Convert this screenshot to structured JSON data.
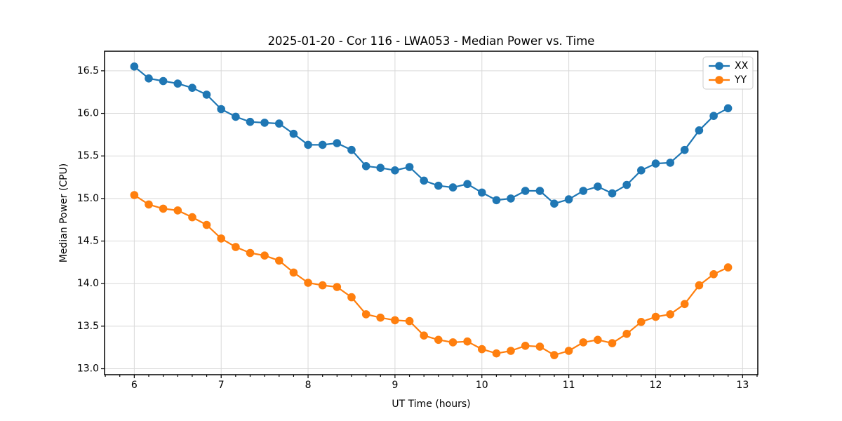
{
  "figure": {
    "title": "2025-01-20 - Cor 116 - LWA053 - Median Power vs. Time"
  },
  "chart_data": {
    "type": "line",
    "title": "2025-01-20 - Cor 116 - LWA053 - Median Power vs. Time",
    "xlabel": "UT Time (hours)",
    "ylabel": "Median Power (CPU)",
    "xlim": [
      5.658,
      13.175
    ],
    "ylim": [
      12.93,
      16.73
    ],
    "xticks": [
      6,
      7,
      8,
      9,
      10,
      11,
      12,
      13
    ],
    "x_minor_step": 0.16667,
    "yticks": [
      13.0,
      13.5,
      14.0,
      14.5,
      15.0,
      15.5,
      16.0,
      16.5
    ],
    "ytick_decimals": 1,
    "grid": true,
    "legend": {
      "location": "upper right",
      "entries": [
        "XX",
        "YY"
      ]
    },
    "marker": "circle",
    "x": [
      6.0,
      6.167,
      6.333,
      6.5,
      6.667,
      6.833,
      7.0,
      7.167,
      7.333,
      7.5,
      7.667,
      7.833,
      8.0,
      8.167,
      8.333,
      8.5,
      8.667,
      8.833,
      9.0,
      9.167,
      9.333,
      9.5,
      9.667,
      9.833,
      10.0,
      10.167,
      10.333,
      10.5,
      10.667,
      10.833,
      11.0,
      11.167,
      11.333,
      11.5,
      11.667,
      11.833,
      12.0,
      12.167,
      12.333,
      12.5,
      12.667,
      12.833
    ],
    "series": [
      {
        "name": "XX",
        "color": "#1f77b4",
        "values": [
          16.55,
          16.41,
          16.38,
          16.35,
          16.3,
          16.22,
          16.05,
          15.96,
          15.9,
          15.89,
          15.88,
          15.76,
          15.63,
          15.63,
          15.65,
          15.57,
          15.38,
          15.36,
          15.33,
          15.37,
          15.21,
          15.15,
          15.13,
          15.17,
          15.07,
          14.98,
          15.0,
          15.09,
          15.09,
          14.94,
          14.99,
          15.09,
          15.14,
          15.06,
          15.16,
          15.33,
          15.41,
          15.42,
          15.57,
          15.8,
          15.97,
          16.06
        ]
      },
      {
        "name": "YY",
        "color": "#ff7f0e",
        "values": [
          15.04,
          14.93,
          14.88,
          14.86,
          14.78,
          14.69,
          14.53,
          14.43,
          14.36,
          14.33,
          14.27,
          14.13,
          14.01,
          13.98,
          13.96,
          13.84,
          13.64,
          13.6,
          13.57,
          13.56,
          13.39,
          13.34,
          13.31,
          13.32,
          13.23,
          13.18,
          13.21,
          13.27,
          13.26,
          13.16,
          13.21,
          13.31,
          13.34,
          13.3,
          13.41,
          13.55,
          13.61,
          13.64,
          13.76,
          13.98,
          14.11,
          14.19
        ]
      }
    ],
    "style": {
      "grid_color": "#d9d9d9",
      "spine_color": "#000000",
      "background": "#ffffff"
    }
  }
}
